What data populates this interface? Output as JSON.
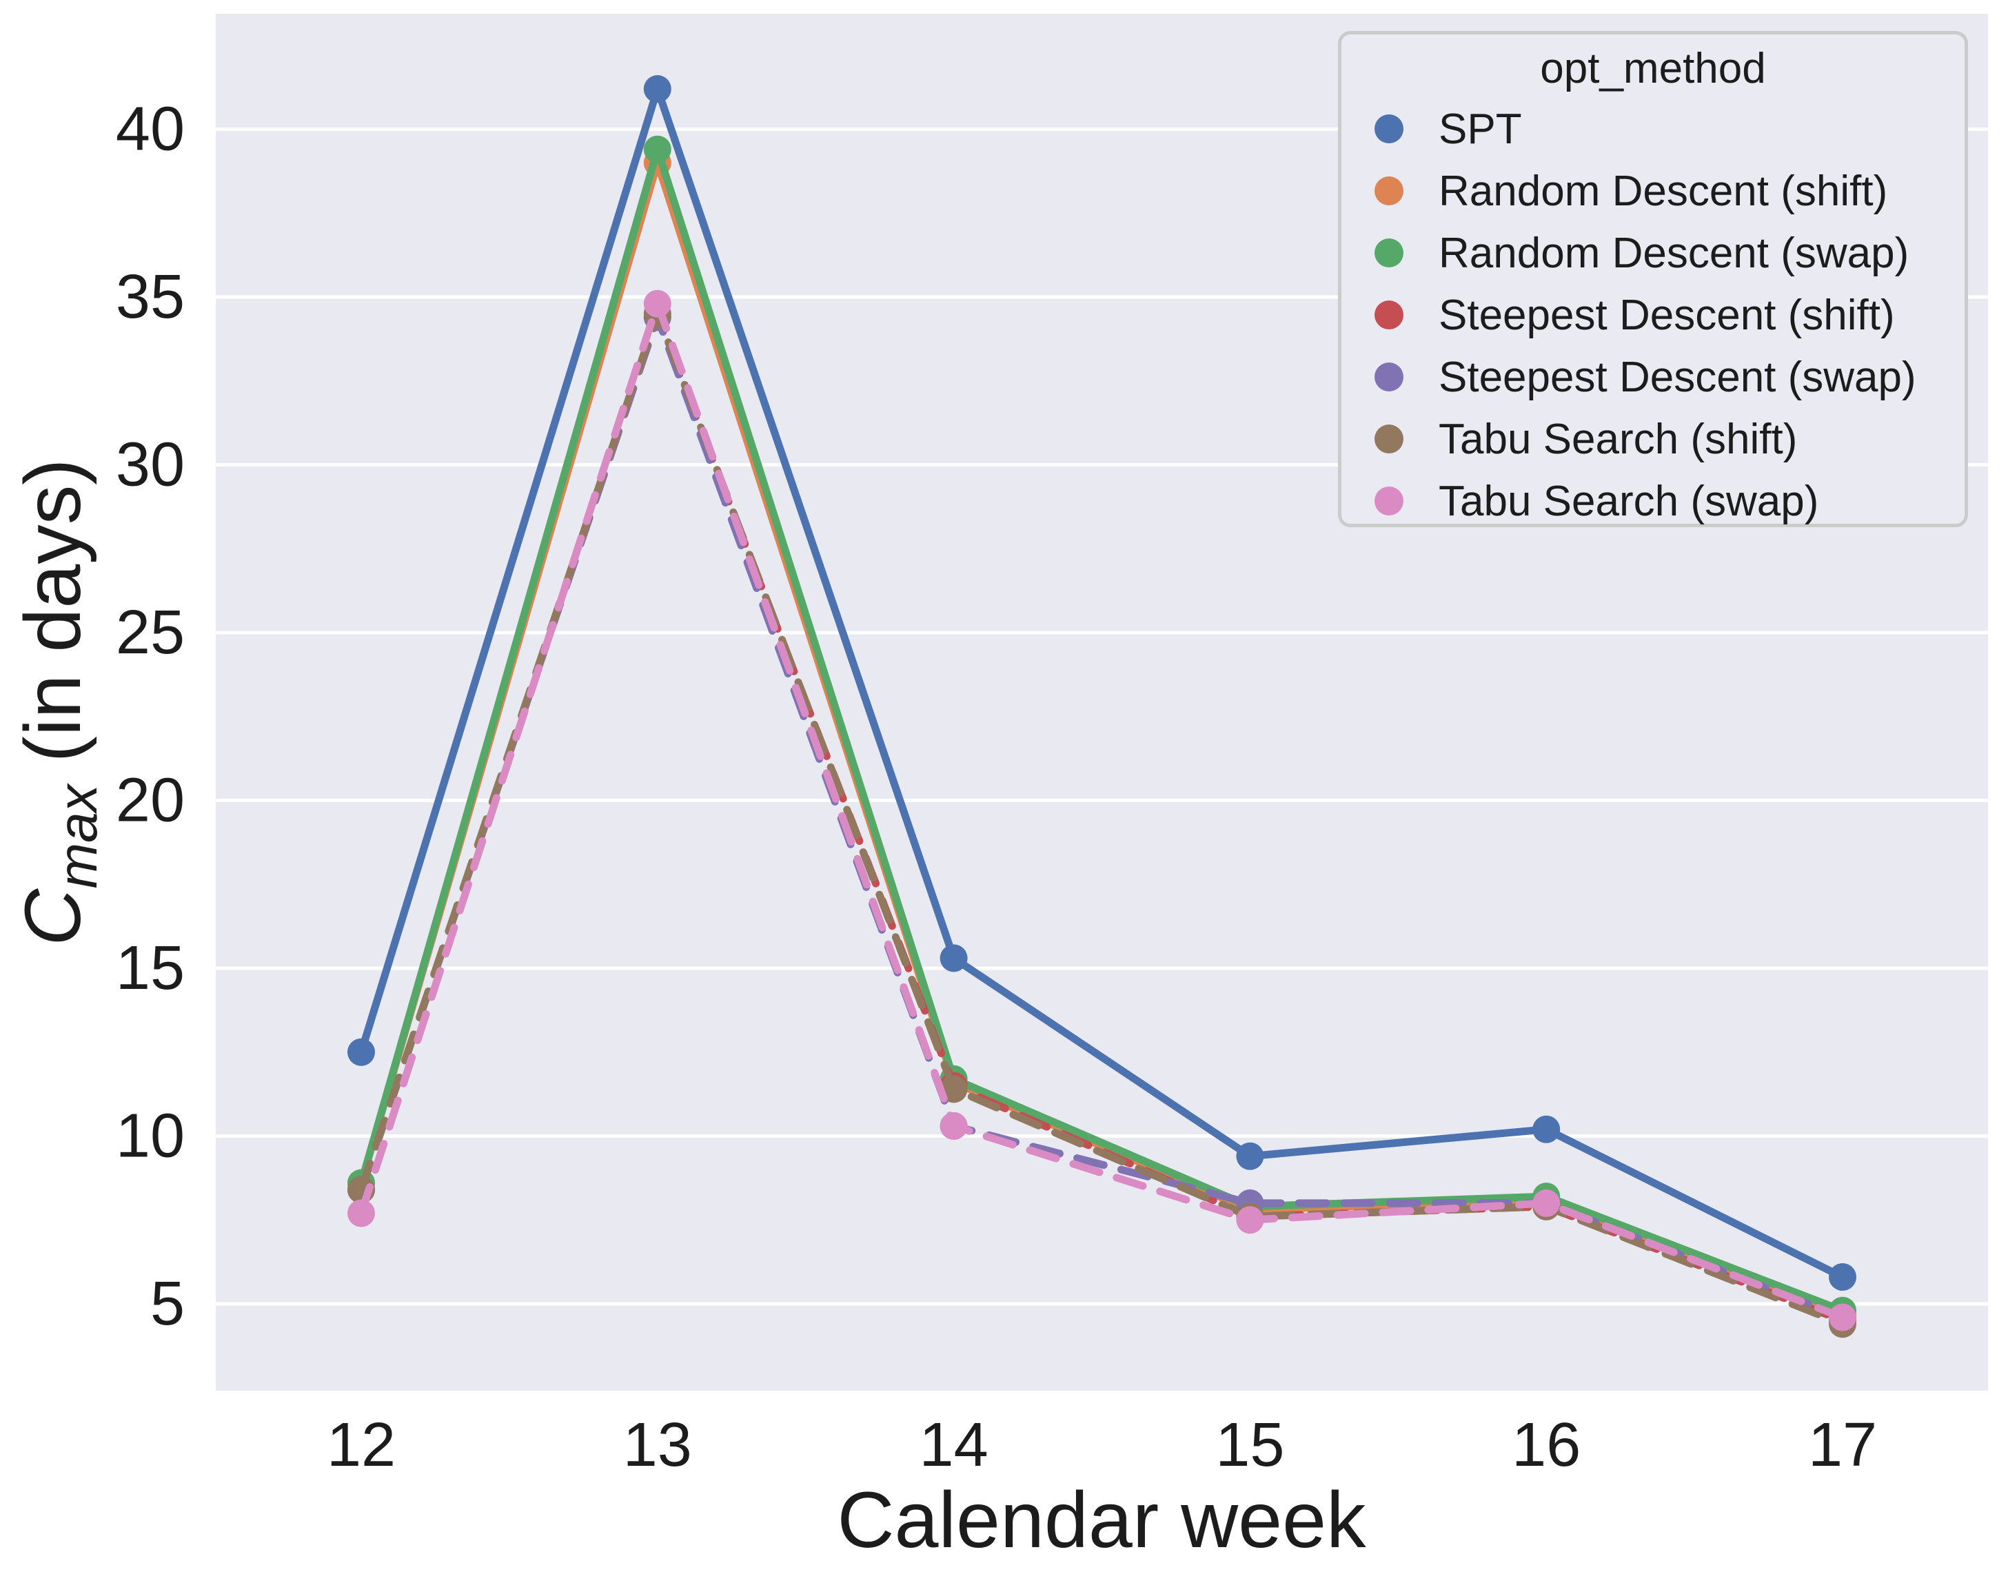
{
  "figure": {
    "x_axis": {
      "label": "Calendar week",
      "ticks": [
        "12",
        "13",
        "14",
        "15",
        "16",
        "17"
      ]
    },
    "y_axis": {
      "label_main": "C",
      "label_sub": "max",
      "label_rest": " (in days)",
      "ticks": [
        "5",
        "10",
        "15",
        "20",
        "25",
        "30",
        "35",
        "40"
      ]
    },
    "colors": {
      "plot_background": "#E9E9F1",
      "gridline": "#FFFFFF",
      "text": "#1c1c1c",
      "legend_border": "#CBCBCB",
      "legend_background": "#EAEAF2"
    }
  },
  "legend": {
    "title": "opt_method"
  },
  "chart_data": {
    "type": "line",
    "x": [
      12,
      13,
      14,
      15,
      16,
      17
    ],
    "xlabel": "Calendar week",
    "ylabel": "C_max (in days)",
    "xlim": [
      11.5,
      17.5
    ],
    "ylim": [
      2.4,
      43.4
    ],
    "y_ticks": [
      5,
      10,
      15,
      20,
      25,
      30,
      35,
      40
    ],
    "grid": "horizontal gridlines only (white on grey)",
    "legend_position": "upper right",
    "legend_title": "opt_method",
    "series": [
      {
        "name": "SPT",
        "color": "#4C72B0",
        "dash": "solid",
        "values": [
          12.5,
          41.2,
          15.3,
          9.4,
          10.2,
          5.8
        ]
      },
      {
        "name": "Random Descent (shift)",
        "color": "#DD8452",
        "dash": "solid",
        "values": [
          8.6,
          39.0,
          11.6,
          7.8,
          8.1,
          4.7
        ]
      },
      {
        "name": "Random Descent (swap)",
        "color": "#55A868",
        "dash": "solid",
        "values": [
          8.6,
          39.4,
          11.7,
          7.9,
          8.2,
          4.8
        ]
      },
      {
        "name": "Steepest Descent (shift)",
        "color": "#C44E52",
        "dash": "dashed",
        "values": [
          8.4,
          34.4,
          11.5,
          7.6,
          7.9,
          4.5
        ]
      },
      {
        "name": "Steepest Descent (swap)",
        "color": "#8172B3",
        "dash": "dashed",
        "values": [
          8.4,
          34.4,
          10.3,
          8.0,
          8.0,
          4.6
        ]
      },
      {
        "name": "Tabu Search (shift)",
        "color": "#937860",
        "dash": "dashed",
        "values": [
          8.4,
          34.5,
          11.4,
          7.6,
          7.9,
          4.4
        ]
      },
      {
        "name": "Tabu Search (swap)",
        "color": "#DA8BC3",
        "dash": "dashed",
        "values": [
          7.7,
          34.8,
          10.3,
          7.5,
          8.0,
          4.6
        ]
      }
    ]
  }
}
